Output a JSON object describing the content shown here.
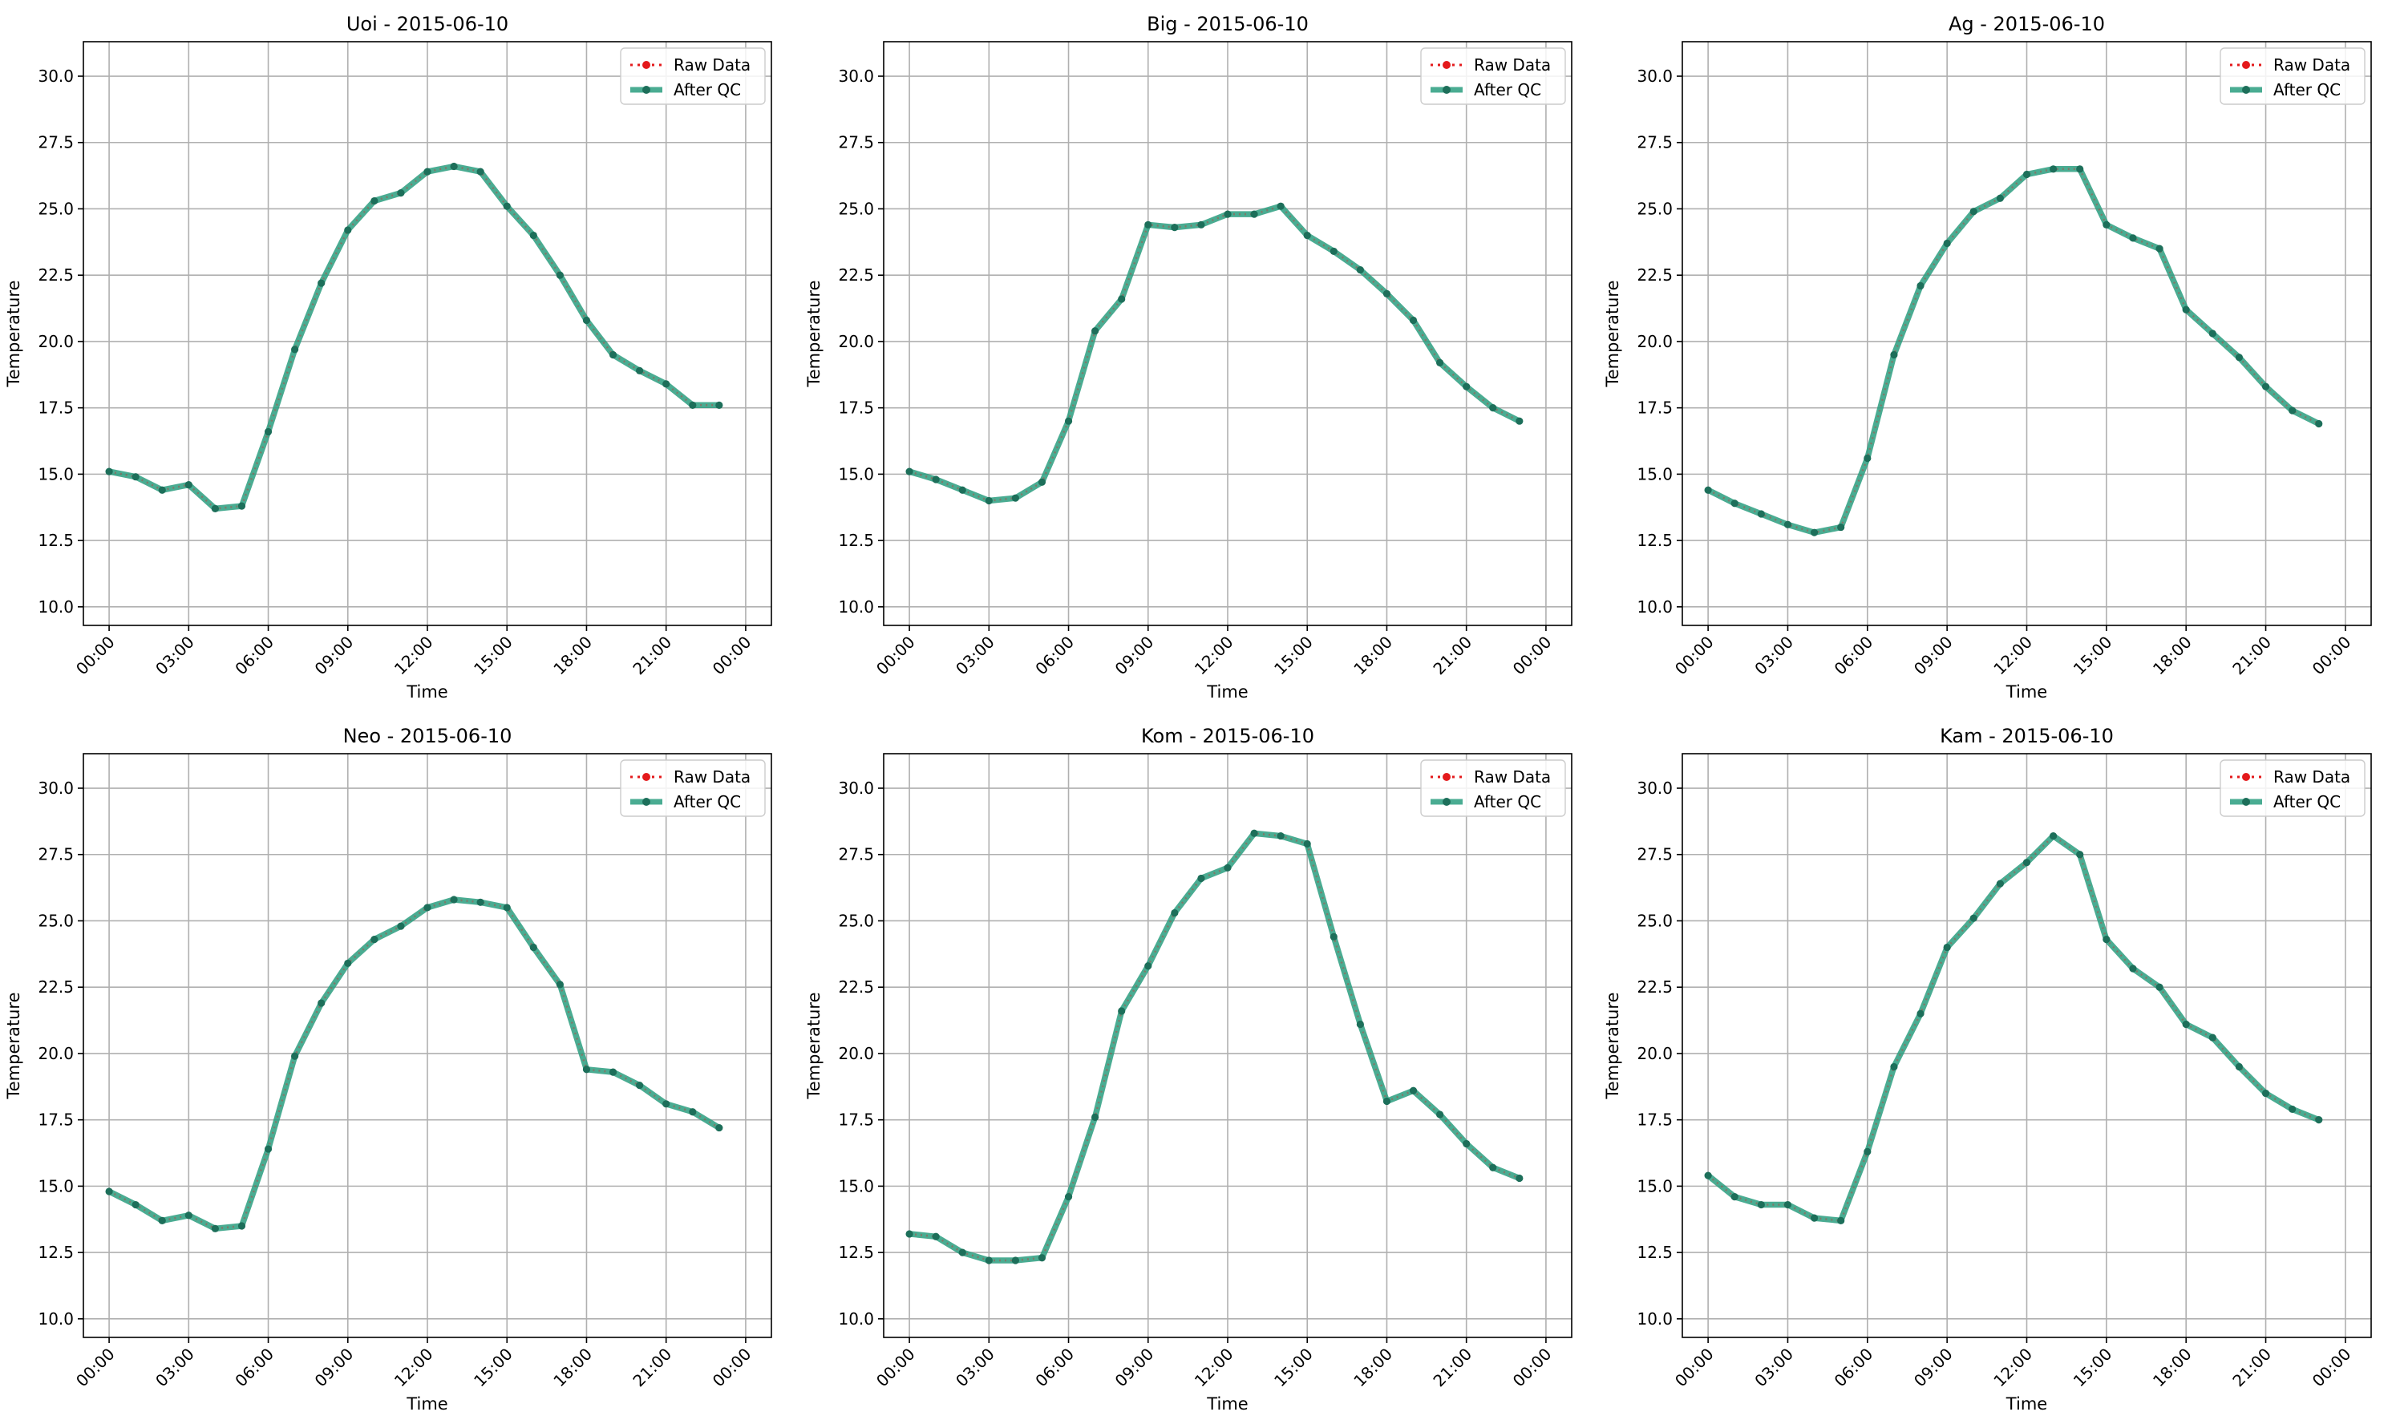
{
  "figure": {
    "x_tick_labels": [
      "00:00",
      "03:00",
      "06:00",
      "09:00",
      "12:00",
      "15:00",
      "18:00",
      "21:00",
      "00:00"
    ],
    "y_ticks": [
      10.0,
      12.5,
      15.0,
      17.5,
      20.0,
      22.5,
      25.0,
      27.5,
      30.0
    ],
    "colors": {
      "raw": "#e41a1c",
      "qc": "#2a9d7f",
      "qc_marker": "#1d6f5a",
      "grid": "#b0b0b0",
      "axes": "#000000"
    }
  },
  "chart_data": [
    {
      "type": "line",
      "title": "Uoi - 2015-06-10",
      "xlabel": "Time",
      "ylabel": "Temperature",
      "x": [
        "00:00",
        "01:00",
        "02:00",
        "03:00",
        "04:00",
        "05:00",
        "06:00",
        "07:00",
        "08:00",
        "09:00",
        "10:00",
        "11:00",
        "12:00",
        "13:00",
        "14:00",
        "15:00",
        "16:00",
        "17:00",
        "18:00",
        "19:00",
        "20:00",
        "21:00",
        "22:00",
        "23:00"
      ],
      "xlim": [
        "00:00",
        "24:00"
      ],
      "ylim": [
        9.3,
        31.3
      ],
      "grid": true,
      "legend": "top-right",
      "series": [
        {
          "name": "Raw Data",
          "style": "dotted-red",
          "values": [
            15.1,
            14.9,
            14.4,
            14.6,
            13.7,
            13.8,
            16.6,
            19.7,
            22.2,
            24.2,
            25.3,
            25.6,
            26.4,
            26.6,
            26.4,
            25.1,
            24.0,
            22.5,
            20.8,
            19.5,
            18.9,
            18.4,
            17.6,
            17.6
          ]
        },
        {
          "name": "After QC",
          "style": "solid-green",
          "values": [
            15.1,
            14.9,
            14.4,
            14.6,
            13.7,
            13.8,
            16.6,
            19.7,
            22.2,
            24.2,
            25.3,
            25.6,
            26.4,
            26.6,
            26.4,
            25.1,
            24.0,
            22.5,
            20.8,
            19.5,
            18.9,
            18.4,
            17.6,
            17.6
          ]
        }
      ]
    },
    {
      "type": "line",
      "title": "Big - 2015-06-10",
      "xlabel": "Time",
      "ylabel": "Temperature",
      "x": [
        "00:00",
        "01:00",
        "02:00",
        "03:00",
        "04:00",
        "05:00",
        "06:00",
        "07:00",
        "08:00",
        "09:00",
        "10:00",
        "11:00",
        "12:00",
        "13:00",
        "14:00",
        "15:00",
        "16:00",
        "17:00",
        "18:00",
        "19:00",
        "20:00",
        "21:00",
        "22:00",
        "23:00"
      ],
      "xlim": [
        "00:00",
        "24:00"
      ],
      "ylim": [
        9.3,
        31.3
      ],
      "grid": true,
      "legend": "top-right",
      "series": [
        {
          "name": "Raw Data",
          "style": "dotted-red",
          "values": [
            15.1,
            14.8,
            14.4,
            14.0,
            14.1,
            14.7,
            17.0,
            20.4,
            21.6,
            24.4,
            24.3,
            24.4,
            24.8,
            24.8,
            25.1,
            24.0,
            23.4,
            22.7,
            21.8,
            20.8,
            19.2,
            18.3,
            17.5,
            17.0
          ]
        },
        {
          "name": "After QC",
          "style": "solid-green",
          "values": [
            15.1,
            14.8,
            14.4,
            14.0,
            14.1,
            14.7,
            17.0,
            20.4,
            21.6,
            24.4,
            24.3,
            24.4,
            24.8,
            24.8,
            25.1,
            24.0,
            23.4,
            22.7,
            21.8,
            20.8,
            19.2,
            18.3,
            17.5,
            17.0
          ]
        }
      ]
    },
    {
      "type": "line",
      "title": "Ag - 2015-06-10",
      "xlabel": "Time",
      "ylabel": "Temperature",
      "x": [
        "00:00",
        "01:00",
        "02:00",
        "03:00",
        "04:00",
        "05:00",
        "06:00",
        "07:00",
        "08:00",
        "09:00",
        "10:00",
        "11:00",
        "12:00",
        "13:00",
        "14:00",
        "15:00",
        "16:00",
        "17:00",
        "18:00",
        "19:00",
        "20:00",
        "21:00",
        "22:00",
        "23:00"
      ],
      "xlim": [
        "00:00",
        "24:00"
      ],
      "ylim": [
        9.3,
        31.3
      ],
      "grid": true,
      "legend": "top-right",
      "series": [
        {
          "name": "Raw Data",
          "style": "dotted-red",
          "values": [
            14.4,
            13.9,
            13.5,
            13.1,
            12.8,
            13.0,
            15.6,
            19.5,
            22.1,
            23.7,
            24.9,
            25.4,
            26.3,
            26.5,
            26.5,
            24.4,
            23.9,
            23.5,
            21.2,
            20.3,
            19.4,
            18.3,
            17.4,
            16.9
          ]
        },
        {
          "name": "After QC",
          "style": "solid-green",
          "values": [
            14.4,
            13.9,
            13.5,
            13.1,
            12.8,
            13.0,
            15.6,
            19.5,
            22.1,
            23.7,
            24.9,
            25.4,
            26.3,
            26.5,
            26.5,
            24.4,
            23.9,
            23.5,
            21.2,
            20.3,
            19.4,
            18.3,
            17.4,
            16.9
          ]
        }
      ]
    },
    {
      "type": "line",
      "title": "Neo - 2015-06-10",
      "xlabel": "Time",
      "ylabel": "Temperature",
      "x": [
        "00:00",
        "01:00",
        "02:00",
        "03:00",
        "04:00",
        "05:00",
        "06:00",
        "07:00",
        "08:00",
        "09:00",
        "10:00",
        "11:00",
        "12:00",
        "13:00",
        "14:00",
        "15:00",
        "16:00",
        "17:00",
        "18:00",
        "19:00",
        "20:00",
        "21:00",
        "22:00",
        "23:00"
      ],
      "xlim": [
        "00:00",
        "24:00"
      ],
      "ylim": [
        9.3,
        31.3
      ],
      "grid": true,
      "legend": "top-right",
      "series": [
        {
          "name": "Raw Data",
          "style": "dotted-red",
          "values": [
            14.8,
            14.3,
            13.7,
            13.9,
            13.4,
            13.5,
            16.4,
            19.9,
            21.9,
            23.4,
            24.3,
            24.8,
            25.5,
            25.8,
            25.7,
            25.5,
            24.0,
            22.6,
            19.4,
            19.3,
            18.8,
            18.1,
            17.8,
            17.2
          ]
        },
        {
          "name": "After QC",
          "style": "solid-green",
          "values": [
            14.8,
            14.3,
            13.7,
            13.9,
            13.4,
            13.5,
            16.4,
            19.9,
            21.9,
            23.4,
            24.3,
            24.8,
            25.5,
            25.8,
            25.7,
            25.5,
            24.0,
            22.6,
            19.4,
            19.3,
            18.8,
            18.1,
            17.8,
            17.2
          ]
        }
      ]
    },
    {
      "type": "line",
      "title": "Kom - 2015-06-10",
      "xlabel": "Time",
      "ylabel": "Temperature",
      "x": [
        "00:00",
        "01:00",
        "02:00",
        "03:00",
        "04:00",
        "05:00",
        "06:00",
        "07:00",
        "08:00",
        "09:00",
        "10:00",
        "11:00",
        "12:00",
        "13:00",
        "14:00",
        "15:00",
        "16:00",
        "17:00",
        "18:00",
        "19:00",
        "20:00",
        "21:00",
        "22:00",
        "23:00"
      ],
      "xlim": [
        "00:00",
        "24:00"
      ],
      "ylim": [
        9.3,
        31.3
      ],
      "grid": true,
      "legend": "top-right",
      "series": [
        {
          "name": "Raw Data",
          "style": "dotted-red",
          "values": [
            13.2,
            13.1,
            12.5,
            12.2,
            12.2,
            12.3,
            14.6,
            17.6,
            21.6,
            23.3,
            25.3,
            26.6,
            27.0,
            28.3,
            28.2,
            27.9,
            24.4,
            21.1,
            18.2,
            18.6,
            17.7,
            16.6,
            15.7,
            15.3
          ]
        },
        {
          "name": "After QC",
          "style": "solid-green",
          "values": [
            13.2,
            13.1,
            12.5,
            12.2,
            12.2,
            12.3,
            14.6,
            17.6,
            21.6,
            23.3,
            25.3,
            26.6,
            27.0,
            28.3,
            28.2,
            27.9,
            24.4,
            21.1,
            18.2,
            18.6,
            17.7,
            16.6,
            15.7,
            15.3
          ]
        }
      ]
    },
    {
      "type": "line",
      "title": "Kam - 2015-06-10",
      "xlabel": "Time",
      "ylabel": "Temperature",
      "x": [
        "00:00",
        "01:00",
        "02:00",
        "03:00",
        "04:00",
        "05:00",
        "06:00",
        "07:00",
        "08:00",
        "09:00",
        "10:00",
        "11:00",
        "12:00",
        "13:00",
        "14:00",
        "15:00",
        "16:00",
        "17:00",
        "18:00",
        "19:00",
        "20:00",
        "21:00",
        "22:00",
        "23:00"
      ],
      "xlim": [
        "00:00",
        "24:00"
      ],
      "ylim": [
        9.3,
        31.3
      ],
      "grid": true,
      "legend": "top-right",
      "series": [
        {
          "name": "Raw Data",
          "style": "dotted-red",
          "values": [
            15.4,
            14.6,
            14.3,
            14.3,
            13.8,
            13.7,
            16.3,
            19.5,
            21.5,
            24.0,
            25.1,
            26.4,
            27.2,
            28.2,
            27.5,
            24.3,
            23.2,
            22.5,
            21.1,
            20.6,
            19.5,
            18.5,
            17.9,
            17.5
          ]
        },
        {
          "name": "After QC",
          "style": "solid-green",
          "values": [
            15.4,
            14.6,
            14.3,
            14.3,
            13.8,
            13.7,
            16.3,
            19.5,
            21.5,
            24.0,
            25.1,
            26.4,
            27.2,
            28.2,
            27.5,
            24.3,
            23.2,
            22.5,
            21.1,
            20.6,
            19.5,
            18.5,
            17.9,
            17.5
          ]
        }
      ]
    }
  ]
}
